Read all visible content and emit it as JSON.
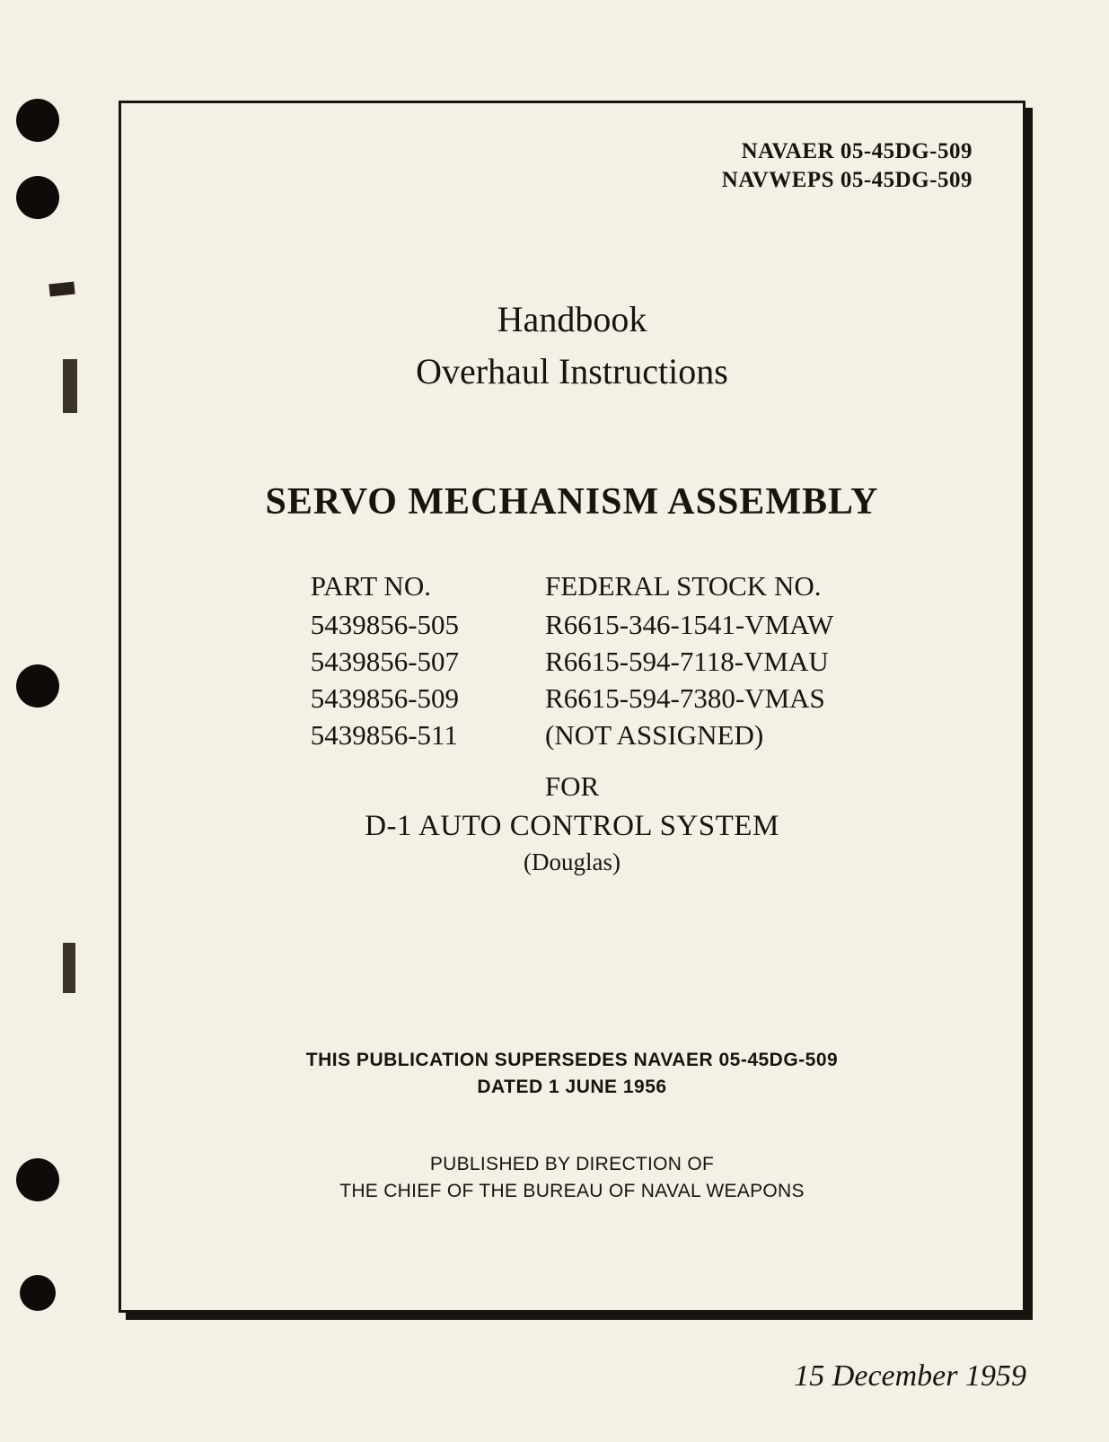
{
  "doc_ids": {
    "line1": "NAVAER 05-45DG-509",
    "line2": "NAVWEPS 05-45DG-509"
  },
  "handbook": {
    "line1": "Handbook",
    "line2": "Overhaul Instructions"
  },
  "title": "SERVO MECHANISM ASSEMBLY",
  "part_no": {
    "header": "PART NO.",
    "items": [
      "5439856-505",
      "5439856-507",
      "5439856-509",
      "5439856-511"
    ]
  },
  "stock_no": {
    "header": "FEDERAL STOCK NO.",
    "items": [
      "R6615-346-1541-VMAW",
      "R6615-594-7118-VMAU",
      "R6615-594-7380-VMAS",
      "(NOT ASSIGNED)"
    ]
  },
  "for_label": "FOR",
  "system": "D-1 AUTO CONTROL SYSTEM",
  "maker": "(Douglas)",
  "supersedes": {
    "line1": "THIS PUBLICATION SUPERSEDES NAVAER 05-45DG-509",
    "line2": "DATED 1 JUNE 1956"
  },
  "published": {
    "line1": "PUBLISHED BY DIRECTION OF",
    "line2": "THE CHIEF OF THE BUREAU OF NAVAL WEAPONS"
  },
  "date": "15 December 1959",
  "colors": {
    "paper": "#f3f0e6",
    "ink": "#1a1410"
  }
}
